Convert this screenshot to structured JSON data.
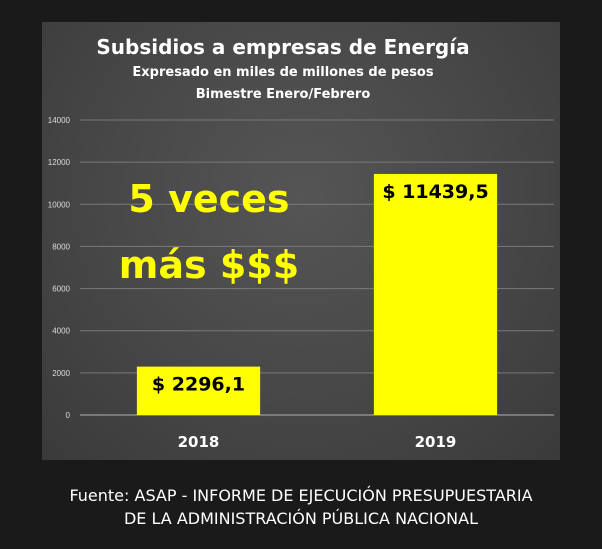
{
  "chart_data": {
    "type": "bar",
    "title": "Subsidios a empresas de Energía",
    "subtitle": "Expresado en miles de millones de pesos",
    "subtitle2": "Bimestre Enero/Febrero",
    "categories": [
      "2018",
      "2019"
    ],
    "values": [
      2296.1,
      11439.5
    ],
    "data_labels": [
      "$ 2296,1",
      "$ 11439,5"
    ],
    "yticks": [
      0,
      2000,
      4000,
      6000,
      8000,
      10000,
      12000,
      14000
    ],
    "ylim": [
      0,
      14000
    ],
    "grid": true,
    "bar_color": "#ffff00",
    "annotation": [
      "5 veces",
      "más $$$"
    ],
    "annotation_color": "#ffff00"
  },
  "source": {
    "line1": "Fuente: ASAP - INFORME DE EJECUCIÓN PRESUPUESTARIA",
    "line2": "DE LA ADMINISTRACIÓN PÚBLICA NACIONAL"
  },
  "colors": {
    "background": "#1a1a1a",
    "panel": "#4a4a4a",
    "text": "#ffffff"
  }
}
